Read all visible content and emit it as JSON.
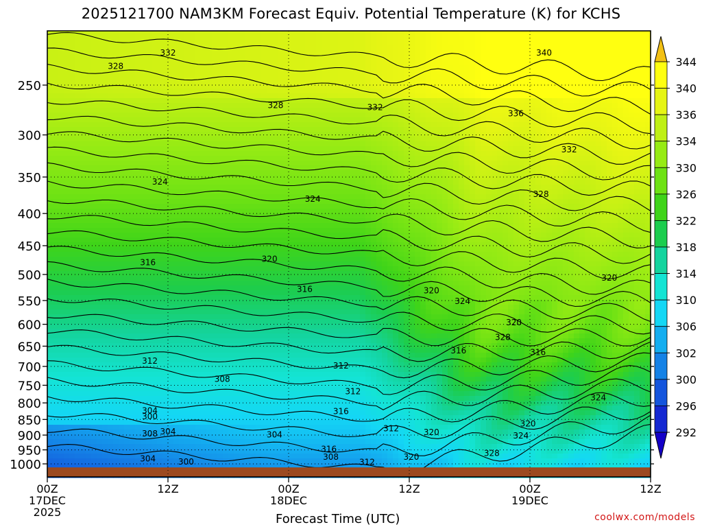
{
  "chart_data": {
    "type": "heatmap",
    "title": "2025121700 NAM3KM Forecast Equiv. Potential Temperature (K) for KCHS",
    "xlabel": "Forecast Time (UTC)",
    "ylabel": "",
    "x_ticks": [
      {
        "hour": 0,
        "lines": [
          "00Z",
          "17DEC",
          "2025"
        ]
      },
      {
        "hour": 12,
        "lines": [
          "12Z"
        ]
      },
      {
        "hour": 24,
        "lines": [
          "00Z",
          "18DEC"
        ]
      },
      {
        "hour": 36,
        "lines": [
          "12Z"
        ]
      },
      {
        "hour": 48,
        "lines": [
          "00Z",
          "19DEC"
        ]
      },
      {
        "hour": 60,
        "lines": [
          "12Z"
        ]
      }
    ],
    "xlim": [
      0,
      60
    ],
    "y_ticks": [
      250,
      300,
      350,
      400,
      450,
      500,
      550,
      600,
      650,
      700,
      750,
      800,
      850,
      900,
      950,
      1000
    ],
    "ylim": [
      1013,
      205
    ],
    "y_unit": "hPa",
    "colorbar": {
      "labels": [
        344,
        340,
        336,
        334,
        330,
        326,
        322,
        318,
        314,
        310,
        306,
        302,
        300,
        296,
        292
      ],
      "colors": [
        "#f2c014",
        "#ffff10",
        "#e6f514",
        "#bff014",
        "#96eb14",
        "#6ee214",
        "#3fd419",
        "#1ccd4e",
        "#14d49e",
        "#14e4d4",
        "#14d7f5",
        "#14aef0",
        "#1482e6",
        "#1455dd",
        "#1428d2",
        "#1400c8"
      ]
    },
    "contour_labels": [
      {
        "v": "332",
        "h": 12.0,
        "p": 222
      },
      {
        "v": "340",
        "h": 49.4,
        "p": 222
      },
      {
        "v": "328",
        "h": 6.8,
        "p": 233
      },
      {
        "v": "328",
        "h": 22.7,
        "p": 269
      },
      {
        "v": "332",
        "h": 32.6,
        "p": 271
      },
      {
        "v": "336",
        "h": 46.6,
        "p": 277
      },
      {
        "v": "332",
        "h": 51.9,
        "p": 316
      },
      {
        "v": "324",
        "h": 11.2,
        "p": 356
      },
      {
        "v": "324",
        "h": 26.4,
        "p": 379
      },
      {
        "v": "328",
        "h": 49.1,
        "p": 372
      },
      {
        "v": "316",
        "h": 10.0,
        "p": 478
      },
      {
        "v": "320",
        "h": 22.1,
        "p": 472
      },
      {
        "v": "316",
        "h": 25.6,
        "p": 527
      },
      {
        "v": "320",
        "h": 38.2,
        "p": 530
      },
      {
        "v": "324",
        "h": 41.3,
        "p": 551
      },
      {
        "v": "320",
        "h": 55.9,
        "p": 506
      },
      {
        "v": "320",
        "h": 46.4,
        "p": 595
      },
      {
        "v": "328",
        "h": 45.3,
        "p": 628
      },
      {
        "v": "316",
        "h": 40.9,
        "p": 660
      },
      {
        "v": "316",
        "h": 48.8,
        "p": 664
      },
      {
        "v": "312",
        "h": 10.2,
        "p": 685
      },
      {
        "v": "312",
        "h": 29.2,
        "p": 697
      },
      {
        "v": "308",
        "h": 17.4,
        "p": 732
      },
      {
        "v": "312",
        "h": 30.4,
        "p": 766
      },
      {
        "v": "324",
        "h": 54.8,
        "p": 784
      },
      {
        "v": "304",
        "h": 10.2,
        "p": 822
      },
      {
        "v": "300",
        "h": 10.2,
        "p": 840
      },
      {
        "v": "316",
        "h": 29.2,
        "p": 824
      },
      {
        "v": "312",
        "h": 34.2,
        "p": 878
      },
      {
        "v": "320",
        "h": 38.2,
        "p": 890
      },
      {
        "v": "320",
        "h": 47.8,
        "p": 862
      },
      {
        "v": "304",
        "h": 12.0,
        "p": 888
      },
      {
        "v": "308",
        "h": 10.2,
        "p": 894
      },
      {
        "v": "304",
        "h": 22.6,
        "p": 898
      },
      {
        "v": "324",
        "h": 47.1,
        "p": 901
      },
      {
        "v": "316",
        "h": 28.0,
        "p": 946
      },
      {
        "v": "328",
        "h": 44.2,
        "p": 961
      },
      {
        "v": "308",
        "h": 28.2,
        "p": 974
      },
      {
        "v": "320",
        "h": 36.2,
        "p": 974
      },
      {
        "v": "304",
        "h": 10.0,
        "p": 980
      },
      {
        "v": "300",
        "h": 13.8,
        "p": 991
      },
      {
        "v": "312",
        "h": 31.8,
        "p": 993
      }
    ]
  },
  "credit": "coolwx.com/models"
}
